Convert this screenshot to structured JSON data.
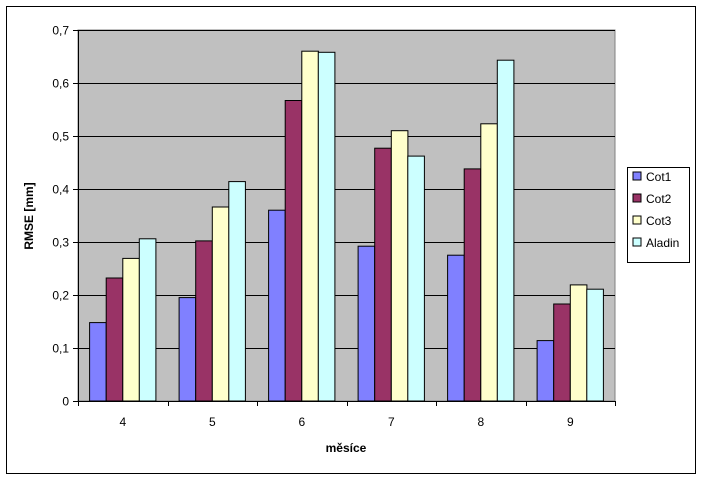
{
  "chart_data": {
    "type": "bar",
    "categories": [
      "4",
      "5",
      "6",
      "7",
      "8",
      "9"
    ],
    "series": [
      {
        "name": "Cot1",
        "values": [
          0.148,
          0.195,
          0.36,
          0.292,
          0.275,
          0.114
        ]
      },
      {
        "name": "Cot2",
        "values": [
          0.232,
          0.302,
          0.567,
          0.477,
          0.438,
          0.183
        ]
      },
      {
        "name": "Cot3",
        "values": [
          0.269,
          0.366,
          0.66,
          0.51,
          0.523,
          0.219
        ]
      },
      {
        "name": "Aladin",
        "values": [
          0.306,
          0.414,
          0.658,
          0.462,
          0.643,
          0.211
        ]
      }
    ],
    "xlabel": "měsíce",
    "ylabel": "RMSE [mm]",
    "ylim": [
      0,
      0.7
    ],
    "yticks": [
      0,
      0.1,
      0.2,
      0.3,
      0.4,
      0.5,
      0.6,
      0.7
    ],
    "ytick_labels": [
      "0",
      "0,1",
      "0,2",
      "0,3",
      "0,4",
      "0,5",
      "0,6",
      "0,7"
    ],
    "grid": true,
    "legend_position": "right",
    "colors": {
      "plot_background": "#c0c0c0",
      "gridline": "#000000",
      "series": [
        "#8080ff",
        "#993366",
        "#ffffcc",
        "#ccffff"
      ]
    }
  }
}
